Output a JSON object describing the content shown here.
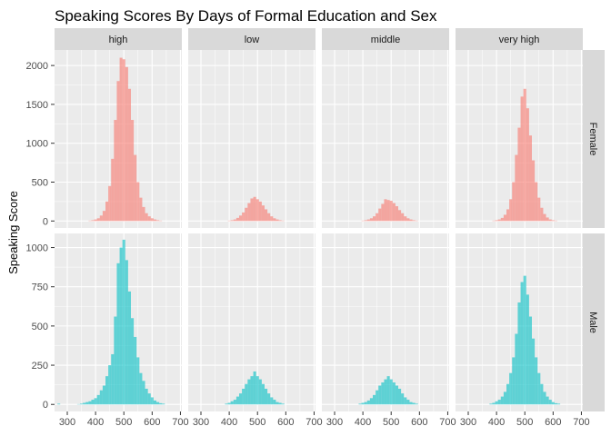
{
  "chart_data": {
    "type": "bar",
    "subtype": "faceted-histogram",
    "title": "Speaking Scores By Days of Formal Education and Sex",
    "xlabel": "",
    "ylabel": "Speaking Score",
    "column_facets": [
      "high",
      "low",
      "middle",
      "very high"
    ],
    "row_facets": [
      "Female",
      "Male"
    ],
    "xlim": [
      255,
      705
    ],
    "x_ticks": [
      300,
      400,
      500,
      600,
      700
    ],
    "bin_width": 10,
    "bin_centers": [
      270,
      280,
      290,
      300,
      310,
      320,
      330,
      340,
      350,
      360,
      370,
      380,
      390,
      400,
      410,
      420,
      430,
      440,
      450,
      460,
      470,
      480,
      490,
      500,
      510,
      520,
      530,
      540,
      550,
      560,
      570,
      580,
      590,
      600,
      610,
      620,
      630,
      640,
      650,
      660,
      670
    ],
    "grid": true,
    "rows": [
      {
        "name": "Female",
        "color": "#F8766D",
        "ylim": [
          -90,
          2200
        ],
        "y_ticks": [
          0,
          500,
          1000,
          1500,
          2000
        ],
        "panels": [
          {
            "facet": "high",
            "counts": [
              0,
              0,
              0,
              0,
              0,
              0,
              0,
              0,
              0,
              0,
              0,
              5,
              10,
              20,
              35,
              70,
              130,
              250,
              450,
              800,
              1300,
              1800,
              2100,
              2080,
              1980,
              1700,
              1300,
              850,
              500,
              300,
              180,
              100,
              60,
              35,
              20,
              10,
              5,
              0,
              0,
              0,
              0
            ]
          },
          {
            "facet": "low",
            "counts": [
              0,
              0,
              0,
              0,
              0,
              0,
              0,
              0,
              0,
              0,
              0,
              0,
              0,
              5,
              10,
              20,
              40,
              70,
              110,
              170,
              230,
              290,
              310,
              280,
              250,
              200,
              150,
              100,
              60,
              35,
              20,
              10,
              5,
              0,
              0,
              0,
              0,
              0,
              0,
              0,
              0
            ]
          },
          {
            "facet": "middle",
            "counts": [
              0,
              0,
              0,
              0,
              0,
              0,
              0,
              0,
              0,
              0,
              0,
              0,
              0,
              5,
              10,
              20,
              35,
              60,
              100,
              160,
              220,
              280,
              270,
              260,
              230,
              190,
              140,
              100,
              60,
              35,
              20,
              10,
              5,
              0,
              0,
              0,
              0,
              0,
              0,
              0,
              0
            ]
          },
          {
            "facet": "very high",
            "counts": [
              0,
              0,
              0,
              0,
              0,
              0,
              0,
              0,
              0,
              0,
              0,
              0,
              5,
              10,
              20,
              40,
              80,
              150,
              280,
              500,
              850,
              1200,
              1600,
              1700,
              1450,
              1100,
              780,
              500,
              300,
              170,
              90,
              45,
              20,
              10,
              5,
              0,
              0,
              0,
              0,
              0,
              0
            ]
          }
        ]
      },
      {
        "name": "Male",
        "color": "#00BFC4",
        "ylim": [
          -45,
          1090
        ],
        "y_ticks": [
          0,
          250,
          500,
          750,
          1000
        ],
        "panels": [
          {
            "facet": "high",
            "counts": [
              5,
              0,
              0,
              0,
              0,
              0,
              0,
              2,
              5,
              10,
              15,
              20,
              30,
              40,
              60,
              90,
              120,
              180,
              250,
              320,
              560,
              900,
              1000,
              1050,
              920,
              720,
              550,
              430,
              300,
              200,
              150,
              100,
              70,
              45,
              25,
              15,
              8,
              5,
              0,
              0,
              0
            ]
          },
          {
            "facet": "low",
            "counts": [
              0,
              0,
              0,
              0,
              0,
              0,
              0,
              0,
              0,
              0,
              0,
              0,
              5,
              10,
              20,
              30,
              50,
              70,
              100,
              130,
              160,
              180,
              210,
              180,
              160,
              130,
              100,
              70,
              45,
              30,
              15,
              10,
              5,
              0,
              0,
              0,
              0,
              0,
              0,
              0,
              0
            ]
          },
          {
            "facet": "middle",
            "counts": [
              0,
              0,
              0,
              0,
              0,
              0,
              0,
              0,
              0,
              0,
              0,
              0,
              5,
              10,
              15,
              25,
              40,
              60,
              90,
              120,
              140,
              160,
              180,
              160,
              140,
              120,
              100,
              70,
              45,
              30,
              15,
              10,
              5,
              0,
              0,
              0,
              0,
              0,
              0,
              0,
              0
            ]
          },
          {
            "facet": "very high",
            "counts": [
              0,
              0,
              0,
              0,
              0,
              0,
              0,
              0,
              0,
              0,
              0,
              5,
              10,
              20,
              30,
              50,
              80,
              130,
              200,
              300,
              450,
              650,
              780,
              820,
              700,
              560,
              420,
              300,
              200,
              130,
              80,
              50,
              30,
              15,
              8,
              5,
              0,
              0,
              0,
              0,
              0
            ]
          }
        ]
      }
    ]
  }
}
